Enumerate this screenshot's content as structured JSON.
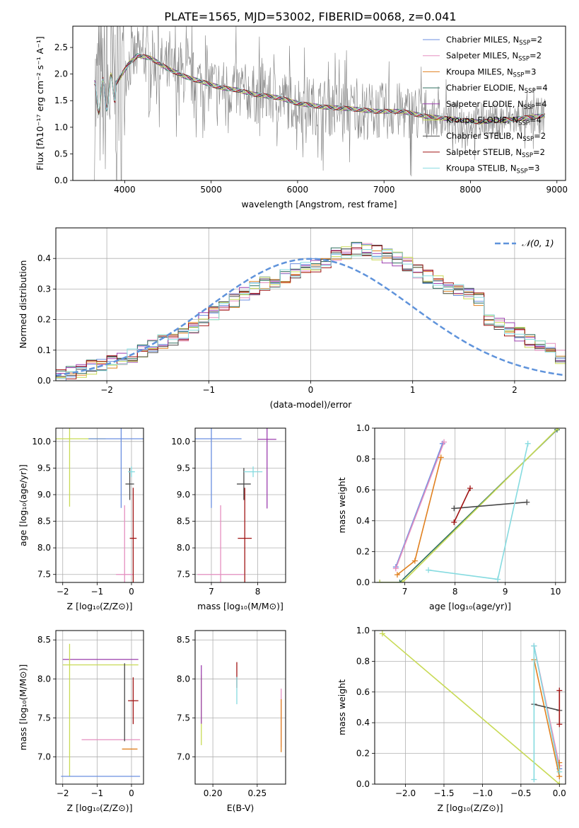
{
  "figure": {
    "title": "PLATE=1565, MJD=53002, FIBERID=0068, z=0.041"
  },
  "colors": {
    "chabrier_miles": "#6b8fe0",
    "salpeter_miles": "#e58fc0",
    "kroupa_miles": "#e0801f",
    "chabrier_elodie": "#2f6f5f",
    "salpeter_elodie": "#9c3fae",
    "kroupa_elodie": "#c8da55",
    "chabrier_stelib": "#4a4a4a",
    "salpeter_stelib": "#a01515",
    "kroupa_stelib": "#86dbe0",
    "data": "#808080",
    "normal": "#5f93db"
  },
  "chart_data": [
    {
      "id": "spectrum",
      "type": "line",
      "xlabel": "wavelength [Angstrom, rest frame]",
      "ylabel": "Flux [fλ10⁻¹⁷ erg cm⁻² s⁻¹ A⁻¹]",
      "xlim": [
        3400,
        9100
      ],
      "ylim": [
        0,
        2.9
      ],
      "xticks": [
        4000,
        5000,
        6000,
        7000,
        8000,
        9000
      ],
      "yticks": [
        "0.0",
        "0.5",
        "1.0",
        "1.5",
        "2.0",
        "2.5"
      ],
      "grid": false,
      "legend_position": "top-right",
      "legend": [
        {
          "label": "Chabrier MILES, N",
          "sub": "SSP",
          "suffix": "=2",
          "color": "#6b8fe0"
        },
        {
          "label": "Salpeter MILES, N",
          "sub": "SSP",
          "suffix": "=2",
          "color": "#e58fc0"
        },
        {
          "label": "Kroupa MILES, N",
          "sub": "SSP",
          "suffix": "=3",
          "color": "#e0801f"
        },
        {
          "label": "Chabrier ELODIE, N",
          "sub": "SSP",
          "suffix": "=4",
          "color": "#2f6f5f"
        },
        {
          "label": "Salpeter ELODIE, N",
          "sub": "SSP",
          "suffix": "=4",
          "color": "#9c3fae"
        },
        {
          "label": "Kroupa ELODIE, N",
          "sub": "SSP",
          "suffix": "=4",
          "color": "#c8da55"
        },
        {
          "label": "Chabrier STELIB, N",
          "sub": "SSP",
          "suffix": "=2",
          "color": "#4a4a4a"
        },
        {
          "label": "Salpeter STELIB, N",
          "sub": "SSP",
          "suffix": "=2",
          "color": "#a01515"
        },
        {
          "label": "Kroupa STELIB, N",
          "sub": "SSP",
          "suffix": "=3",
          "color": "#86dbe0"
        }
      ],
      "continuum": [
        [
          3650,
          1.55
        ],
        [
          3750,
          1.6
        ],
        [
          3850,
          1.7
        ],
        [
          3950,
          1.95
        ],
        [
          4050,
          2.2
        ],
        [
          4150,
          2.35
        ],
        [
          4300,
          2.3
        ],
        [
          4500,
          2.1
        ],
        [
          4700,
          1.95
        ],
        [
          4900,
          1.85
        ],
        [
          5100,
          1.75
        ],
        [
          5300,
          1.7
        ],
        [
          5500,
          1.62
        ],
        [
          5800,
          1.55
        ],
        [
          6000,
          1.45
        ],
        [
          6300,
          1.38
        ],
        [
          6600,
          1.35
        ],
        [
          6900,
          1.3
        ],
        [
          7200,
          1.3
        ],
        [
          7500,
          1.2
        ],
        [
          7800,
          1.15
        ],
        [
          8100,
          1.1
        ],
        [
          8500,
          1.15
        ],
        [
          8850,
          1.22
        ]
      ]
    },
    {
      "id": "residuals",
      "type": "histogram",
      "xlabel": "(data-model)/error",
      "ylabel": "Normed distribution",
      "xlim": [
        -2.5,
        2.5
      ],
      "ylim": [
        0,
        0.5
      ],
      "xticks": [
        "−2",
        "−1",
        "0",
        "1",
        "2"
      ],
      "yticks": [
        "0.0",
        "0.1",
        "0.2",
        "0.3",
        "0.4"
      ],
      "grid": true,
      "legend_position": "top-right",
      "legend_label": "𝒩(0, 1)",
      "bin_width": 0.1,
      "bins_start": -2.5,
      "histogram_values": [
        0.02,
        0.025,
        0.03,
        0.045,
        0.05,
        0.06,
        0.065,
        0.08,
        0.1,
        0.11,
        0.13,
        0.14,
        0.15,
        0.18,
        0.2,
        0.22,
        0.24,
        0.26,
        0.28,
        0.3,
        0.32,
        0.33,
        0.34,
        0.36,
        0.37,
        0.38,
        0.39,
        0.41,
        0.42,
        0.43,
        0.43,
        0.42,
        0.41,
        0.4,
        0.38,
        0.36,
        0.34,
        0.32,
        0.3,
        0.29,
        0.28,
        0.27,
        0.2,
        0.18,
        0.17,
        0.15,
        0.13,
        0.11,
        0.1,
        0.08
      ]
    },
    {
      "id": "z-vs-age",
      "type": "errorbar",
      "xlabel": "Z [log₁₀(Z/Z⊙)]",
      "ylabel": "age  [log₁₀(age/yr)]",
      "xlim": [
        -2.2,
        0.35
      ],
      "ylim": [
        7.35,
        10.25
      ],
      "xticks": [
        "−2",
        "−1",
        "0"
      ],
      "yticks": [
        "7.5",
        "8.0",
        "8.5",
        "9.0",
        "9.5",
        "10.0"
      ],
      "grid": true,
      "points": [
        {
          "x": -1.8,
          "xerr": 2.1,
          "y": 10.05,
          "yerr": 2.55,
          "color": "#c8da55"
        },
        {
          "x": -0.2,
          "xerr": 0.5,
          "y": 7.5,
          "yerr": 2.6,
          "color": "#e58fc0"
        },
        {
          "x": -0.3,
          "xerr": 1.9,
          "y": 10.05,
          "yerr": 2.6,
          "color": "#6b8fe0"
        },
        {
          "x": -0.05,
          "xerr": 0.25,
          "y": 9.2,
          "yerr": 0.6,
          "color": "#4a4a4a"
        },
        {
          "x": 0.05,
          "xerr": 0.2,
          "y": 8.18,
          "yerr": 1.9,
          "color": "#a01515"
        },
        {
          "x": 0.0,
          "xerr": 0.2,
          "y": 9.43,
          "yerr": 0.2,
          "color": "#86dbe0"
        }
      ]
    },
    {
      "id": "mass-vs-age",
      "type": "errorbar",
      "xlabel": "mass [log₁₀(M/M⊙)]",
      "ylabel": "",
      "xlim": [
        6.65,
        8.6
      ],
      "ylim": [
        7.35,
        10.25
      ],
      "xticks": [
        "7",
        "8"
      ],
      "yticks": [
        "7.5",
        "8.0",
        "8.5",
        "9.0",
        "9.5",
        "10.0"
      ],
      "grid": true,
      "points": [
        {
          "x": 7.0,
          "xerr": 1.3,
          "y": 10.05,
          "yerr": 2.6,
          "color": "#6b8fe0"
        },
        {
          "x": 7.2,
          "xerr": 1.0,
          "y": 7.5,
          "yerr": 2.6,
          "color": "#e58fc0"
        },
        {
          "x": 8.2,
          "xerr": 0.4,
          "y": 10.04,
          "yerr": 2.6,
          "color": "#9c3fae"
        },
        {
          "x": 7.7,
          "xerr": 0.3,
          "y": 9.2,
          "yerr": 0.6,
          "color": "#4a4a4a"
        },
        {
          "x": 7.72,
          "xerr": 0.3,
          "y": 8.18,
          "yerr": 1.9,
          "color": "#a01515"
        },
        {
          "x": 7.9,
          "xerr": 0.4,
          "y": 9.43,
          "yerr": 0.2,
          "color": "#86dbe0"
        }
      ]
    },
    {
      "id": "age-vs-weight",
      "type": "line",
      "xlabel": "age  [log₁₀(age/yr)]",
      "ylabel": "mass weight",
      "xlim": [
        6.4,
        10.2
      ],
      "ylim": [
        0,
        1
      ],
      "xticks": [
        "7",
        "8",
        "9",
        "10"
      ],
      "yticks": [
        "0.0",
        "0.2",
        "0.4",
        "0.6",
        "0.8",
        "1.0"
      ],
      "grid": true,
      "series": [
        {
          "color": "#6b8fe0",
          "points": [
            [
              6.82,
              0.1
            ],
            [
              7.75,
              0.9
            ]
          ]
        },
        {
          "color": "#e58fc0",
          "points": [
            [
              6.82,
              0.09
            ],
            [
              7.78,
              0.91
            ]
          ]
        },
        {
          "color": "#e0801f",
          "points": [
            [
              6.85,
              0.05
            ],
            [
              7.2,
              0.14
            ],
            [
              7.72,
              0.81
            ]
          ]
        },
        {
          "color": "#2f6f5f",
          "points": [
            [
              6.5,
              0.0
            ],
            [
              6.9,
              0.0
            ],
            [
              10.03,
              0.99
            ]
          ]
        },
        {
          "color": "#c8da55",
          "points": [
            [
              6.5,
              0.0
            ],
            [
              6.95,
              0.0
            ],
            [
              10.05,
              1.0
            ]
          ]
        },
        {
          "color": "#4a4a4a",
          "points": [
            [
              7.98,
              0.48
            ],
            [
              9.43,
              0.52
            ]
          ]
        },
        {
          "color": "#a01515",
          "points": [
            [
              7.98,
              0.39
            ],
            [
              8.3,
              0.61
            ]
          ]
        },
        {
          "color": "#86dbe0",
          "points": [
            [
              7.47,
              0.08
            ],
            [
              8.85,
              0.02
            ],
            [
              9.45,
              0.9
            ]
          ]
        }
      ]
    },
    {
      "id": "z-vs-mass",
      "type": "errorbar",
      "xlabel": "Z [log₁₀(Z/Z⊙)]",
      "ylabel": "mass [log₁₀(M/M⊙)]",
      "xlim": [
        -2.2,
        0.35
      ],
      "ylim": [
        6.65,
        8.62
      ],
      "xticks": [
        "−2",
        "−1",
        "0"
      ],
      "yticks": [
        "7.0",
        "7.5",
        "8.0",
        "8.5"
      ],
      "grid": true,
      "points": [
        {
          "x": -0.9,
          "xerr": 2.2,
          "y": 8.25,
          "yerr": 0.0,
          "color": "#9c3fae"
        },
        {
          "x": -1.8,
          "xerr": 0.0,
          "y": 7.6,
          "yerr": 1.7,
          "color": "#c8da55"
        },
        {
          "x": -0.9,
          "xerr": 2.2,
          "y": 8.18,
          "yerr": 0.0,
          "color": "#c8da55"
        },
        {
          "x": -0.6,
          "xerr": 1.7,
          "y": 7.22,
          "yerr": 0.0,
          "color": "#e58fc0"
        },
        {
          "x": -0.05,
          "xerr": 0.45,
          "y": 7.1,
          "yerr": 0.0,
          "color": "#e0801f"
        },
        {
          "x": -0.9,
          "xerr": 2.3,
          "y": 6.75,
          "yerr": 0.0,
          "color": "#6b8fe0"
        },
        {
          "x": 0.05,
          "xerr": 0.3,
          "y": 7.72,
          "yerr": 0.6,
          "color": "#a01515"
        },
        {
          "x": -0.2,
          "xerr": 0.0,
          "y": 7.7,
          "yerr": 1.0,
          "color": "#4a4a4a"
        }
      ]
    },
    {
      "id": "ebv-vs-mass",
      "type": "errorbar",
      "xlabel": "E(B-V)",
      "ylabel": "",
      "xlim": [
        0.18,
        0.282
      ],
      "ylim": [
        6.65,
        8.62
      ],
      "xticks": [
        "0.20",
        "0.25"
      ],
      "yticks": [
        "7.0",
        "7.5",
        "8.0",
        "8.5"
      ],
      "grid": true,
      "points": [
        {
          "x": 0.187,
          "y": 7.6,
          "yerr": 0.9,
          "color": "#c8da55"
        },
        {
          "x": 0.187,
          "y": 7.8,
          "yerr": 0.75,
          "color": "#9c3fae"
        },
        {
          "x": 0.227,
          "y": 8.05,
          "yerr": 0.33,
          "color": "#a01515"
        },
        {
          "x": 0.227,
          "y": 7.85,
          "yerr": 0.35,
          "color": "#86dbe0"
        },
        {
          "x": 0.277,
          "y": 7.5,
          "yerr": 0.75,
          "color": "#e58fc0"
        },
        {
          "x": 0.277,
          "y": 7.4,
          "yerr": 0.68,
          "color": "#e0801f"
        }
      ]
    },
    {
      "id": "z-vs-weight",
      "type": "line",
      "xlabel": "Z [log₁₀(Z/Z⊙)]",
      "ylabel": "mass weight",
      "xlim": [
        -2.4,
        0.08
      ],
      "ylim": [
        0,
        1
      ],
      "xticks": [
        "−2.0",
        "−1.5",
        "−1.0",
        "−0.5",
        "0.0"
      ],
      "yticks": [
        "0.0",
        "0.2",
        "0.4",
        "0.6",
        "0.8",
        "1.0"
      ],
      "grid": true,
      "series": [
        {
          "color": "#c8da55",
          "points": [
            [
              -2.3,
              0.98
            ],
            [
              0.0,
              0.0
            ]
          ]
        },
        {
          "color": "#6b8fe0",
          "points": [
            [
              -0.33,
              0.9
            ],
            [
              0.0,
              0.1
            ]
          ]
        },
        {
          "color": "#e58fc0",
          "points": [
            [
              -0.33,
              0.9
            ],
            [
              0.0,
              0.12
            ]
          ]
        },
        {
          "color": "#e0801f",
          "points": [
            [
              -0.33,
              0.81
            ],
            [
              0.0,
              0.05
            ],
            [
              0.0,
              0.14
            ]
          ]
        },
        {
          "color": "#4a4a4a",
          "points": [
            [
              -0.33,
              0.52
            ],
            [
              0.0,
              0.48
            ]
          ]
        },
        {
          "color": "#a01515",
          "points": [
            [
              0.0,
              0.39
            ],
            [
              0.0,
              0.61
            ]
          ]
        },
        {
          "color": "#86dbe0",
          "points": [
            [
              -0.33,
              0.03
            ],
            [
              -0.33,
              0.9
            ],
            [
              0.0,
              0.08
            ]
          ]
        }
      ]
    }
  ]
}
